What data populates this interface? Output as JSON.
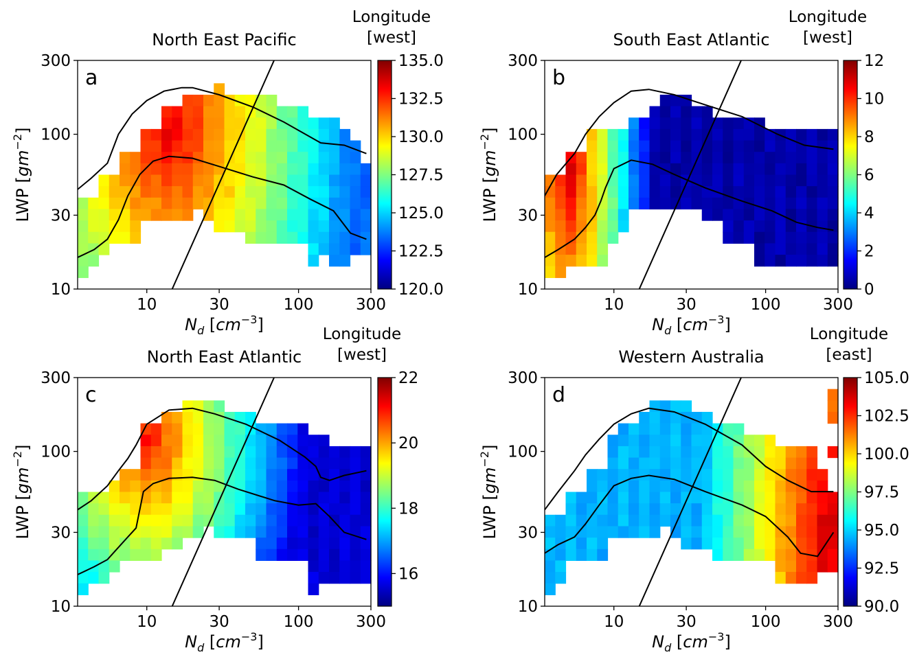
{
  "chart_data": [
    {
      "type": "heatmap",
      "panel_label": "a",
      "title": "North East Pacific",
      "xlabel": "N_d [cm^-3]",
      "ylabel": "LWP [gm^-2]",
      "x_scale": "log",
      "y_scale": "log",
      "xlim": [
        3.5,
        300
      ],
      "ylim": [
        10,
        300
      ],
      "x_ticks": [
        "10",
        "30",
        "100",
        "300"
      ],
      "y_ticks": [
        "10",
        "30",
        "100",
        "300"
      ],
      "colorbar_label": [
        "Longitude",
        "[west]"
      ],
      "colorbar_range": [
        120.0,
        135.0
      ],
      "colorbar_ticks": [
        "120.0",
        "122.5",
        "125.0",
        "127.5",
        "130.0",
        "132.5",
        "135.0"
      ],
      "grid": [
        "............................",
        "............................",
        ".............X..............",
        "..........XXXXXXXXX.........",
        "........XXXXXXXXXXXXXX......",
        "........XXXXXXXXXXXXXXXXX...",
        "......XXXXXXXXXXXXXXXXXXXX..",
        "......XXXXXXXXXXXXXXXXXXXXX.",
        "....XXXXXXXXXXXXXXXXXXXXXXX.",
        "....XXXXXXXXXXXXXXXXXXXXXXXX",
        "..XXXXXXXXXXXXXXXXXXXXXXXXXX",
        "..XXXXXXXXXXXXXXXXXXXXXXXXXX",
        "XXXXXXXXXXXXXXXXXXXXXXXXXXXX",
        "XXXXXXXXXXX.XXXXXXXXXXXXXXXX",
        "XXXXXX.......XXXXXXXXXXXXXXX",
        "XXXXXX..........XXXXXXXXXXXX",
        "XXX...................XXXXXX",
        "XX....................X.XX..",
        "X...........................",
        "............................"
      ],
      "value_field": {
        "peak_x": 14,
        "peak_y": 110,
        "peak_val": 133.5,
        "slope_x": 2.6,
        "slope_y": 1.4,
        "floor": 123.5
      },
      "lines": [
        {
          "name": "upper",
          "x": [
            3.5,
            4.3,
            5.5,
            6.5,
            8,
            10,
            13,
            17,
            20,
            30,
            50,
            80,
            140,
            200,
            280
          ],
          "y": [
            44,
            52,
            65,
            100,
            135,
            165,
            190,
            200,
            200,
            180,
            150,
            120,
            88,
            85,
            75
          ]
        },
        {
          "name": "lower",
          "x": [
            3.5,
            4.5,
            5.5,
            6.5,
            7.5,
            9,
            11,
            14,
            20,
            30,
            50,
            80,
            120,
            170,
            220,
            280
          ],
          "y": [
            16,
            18,
            21,
            28,
            40,
            55,
            67,
            72,
            70,
            62,
            53,
            47,
            38,
            32,
            23,
            21
          ]
        },
        {
          "name": "diagonal",
          "x": [
            14.7,
            69
          ],
          "y": [
            10,
            300
          ]
        }
      ]
    },
    {
      "type": "heatmap",
      "panel_label": "b",
      "title": "South East Atlantic",
      "xlabel": "N_d [cm^-3]",
      "ylabel": "LWP [gm^-2]",
      "x_scale": "log",
      "y_scale": "log",
      "xlim": [
        3.5,
        300
      ],
      "ylim": [
        10,
        300
      ],
      "x_ticks": [
        "10",
        "30",
        "100",
        "300"
      ],
      "y_ticks": [
        "10",
        "30",
        "100",
        "300"
      ],
      "colorbar_label": [
        "Longitude",
        "[west]"
      ],
      "colorbar_range": [
        0,
        12
      ],
      "colorbar_ticks": [
        "0",
        "2",
        "4",
        "6",
        "8",
        "10",
        "12"
      ],
      "grid": [
        "............................",
        "............................",
        "............................",
        "...........XXX..............",
        "..........XXXXXX............",
        "........XXXXXXXXXXXXX.......",
        "....XXXXXXXXXXXXXXXXXXXXXXXX",
        "....XXXXXXXXXXXXXXXXXXXXXXXX",
        "..XXXXXXXXXXXXXXXXXXXXXXXXXX",
        "..XXXXXXXXXXXXXXXXXXXXXXXXXX",
        "XXXXXXXXXXXXXXXXXXXXXXXXXXXX",
        "XXXXXXXXXXXXXXXXXXXXXXXXXXXX",
        "XXXXXXXXXXXXXXXXXXXXXXXXXXXX",
        "XXXXXXXX.......XXXXXXXXXXXXX",
        "XXXXXXXX.........XXXXXXXXXXX",
        "XXXXXXX..........XXXXXXXXXXX",
        "XXXXXX..............XXXXXXXX",
        "XXXXXX..............XXXXXXXX",
        "XX..........................",
        "............................"
      ],
      "value_field": {
        "peak_x": 5,
        "peak_y": 70,
        "peak_val": 11.2,
        "slope_x": 5.6,
        "slope_y": 1.0,
        "floor": 0.5
      },
      "lines": [
        {
          "name": "upper",
          "x": [
            3.5,
            4.2,
            5.5,
            6.5,
            8,
            10,
            13,
            17,
            25,
            40,
            70,
            120,
            180,
            280
          ],
          "y": [
            40,
            55,
            75,
            100,
            130,
            160,
            190,
            195,
            180,
            155,
            130,
            100,
            85,
            80
          ]
        },
        {
          "name": "lower",
          "x": [
            3.5,
            4.3,
            5.5,
            6.5,
            7.5,
            8.2,
            8.8,
            10,
            13,
            18,
            25,
            40,
            70,
            110,
            160,
            220,
            280
          ],
          "y": [
            16,
            18,
            21,
            25,
            30,
            37,
            45,
            60,
            68,
            64,
            55,
            45,
            37,
            32,
            27,
            25,
            24
          ]
        },
        {
          "name": "diagonal",
          "x": [
            14.7,
            69
          ],
          "y": [
            10,
            300
          ]
        }
      ]
    },
    {
      "type": "heatmap",
      "panel_label": "c",
      "title": "North East Atlantic",
      "xlabel": "N_d [cm^-3]",
      "ylabel": "LWP [gm^-2]",
      "x_scale": "log",
      "y_scale": "log",
      "xlim": [
        3.5,
        300
      ],
      "ylim": [
        10,
        300
      ],
      "x_ticks": [
        "10",
        "30",
        "100",
        "300"
      ],
      "y_ticks": [
        "10",
        "30",
        "100",
        "300"
      ],
      "colorbar_label": [
        "Longitude",
        "[west]"
      ],
      "colorbar_range": [
        15,
        22
      ],
      "colorbar_ticks": [
        "16",
        "18",
        "20",
        "22"
      ],
      "grid": [
        "............................",
        "............................",
        "..........XXXX..............",
        "........XXXXXXXXX...........",
        "......XXXXXXXXXXXXXXXX......",
        "......XXXXXXXXXXXXXXXXXX....",
        "......XXXXXXXXXXXXXXXXXXXXXX",
        "......XXXXXXXXXXXXXXXXXXXXXX",
        "....XXXXXXXXXXXXXXXXXXXXXXXX",
        "...XXXXXXXXXXXXXXXXXXXXXXXXX",
        "XXXXXXXXXXXXXXXXXXXXXXXXXXXX",
        "XXXXXXXXXXXXXXXXXXXXXXXXXXXX",
        "XXXXXXXXXXXXXXXXXXXXXXXXXXXX",
        "XXXXXXXXXXXX.XXXXXXXXXXXXXXX",
        "XXXXXXXXXX.......XXXXXXXXXXX",
        "XXXXXXXX.........XXXXXXXXXXX",
        "XXXX..................XXXXXX",
        "XXX...................XXXXXX",
        "X.....................X.....",
        "............................"
      ],
      "value_field": {
        "peak_x": 10,
        "peak_y": 120,
        "peak_val": 21.0,
        "slope_x": 3.0,
        "slope_y": 1.8,
        "floor": 15.6
      },
      "lines": [
        {
          "name": "upper",
          "x": [
            3.5,
            4.3,
            5.5,
            6.5,
            7.5,
            8.5,
            10,
            14,
            20,
            28,
            45,
            75,
            110,
            130,
            140,
            160,
            200,
            280
          ],
          "y": [
            42,
            48,
            60,
            75,
            90,
            110,
            150,
            185,
            190,
            175,
            150,
            118,
            92,
            80,
            68,
            65,
            70,
            75
          ]
        },
        {
          "name": "lower",
          "x": [
            3.5,
            4.5,
            5.5,
            6.5,
            7.5,
            8.5,
            9.5,
            11,
            14,
            20,
            28,
            40,
            70,
            100,
            130,
            160,
            200,
            280
          ],
          "y": [
            16,
            18,
            20,
            24,
            28,
            32,
            55,
            62,
            67,
            68,
            65,
            57,
            48,
            45,
            46,
            38,
            30,
            27
          ]
        },
        {
          "name": "diagonal",
          "x": [
            14.7,
            69
          ],
          "y": [
            10,
            300
          ]
        }
      ]
    },
    {
      "type": "heatmap",
      "panel_label": "d",
      "title": "Western Australia",
      "xlabel": "N_d [cm^-3]",
      "ylabel": "LWP [gm^-2]",
      "x_scale": "log",
      "y_scale": "log",
      "xlim": [
        3.5,
        300
      ],
      "ylim": [
        10,
        300
      ],
      "x_ticks": [
        "10",
        "30",
        "100",
        "300"
      ],
      "y_ticks": [
        "10",
        "30",
        "100",
        "300"
      ],
      "colorbar_label": [
        "Longitude",
        "[east]"
      ],
      "colorbar_range": [
        90.0,
        105.0
      ],
      "colorbar_ticks": [
        "90.0",
        "92.5",
        "95.0",
        "97.5",
        "100.0",
        "102.5",
        "105.0"
      ],
      "grid": [
        "............................",
        "...........................X",
        "..........XXXX.............X",
        ".........XXXXXXX...........X",
        ".......XXXXXXXXXXXX.........",
        "......XXXXXXXXXXXXXXXX......",
        "......XXXXXXXXXXXXXXXXXXXX.X",
        "......XXXXXXXXXXXXXXXXXXXX..",
        "....XXXXXXXXXXXXXXXXXXXXXXX.",
        "....XXXXXXXXXXXXXXXXXXXXXXX.",
        "..XXXXXXXXXXXXXXXXXXXXXXXXXX",
        "..XXXXXXXXXXXXXXXXXXXXXXXXXX",
        "XXXXXXXXXXXXXXXXXXXXXXXXXXXX",
        "XXXXXXXXXXX.XXXXXXXXXXXXXXXX",
        "XXXXXX.......XXXXXXXXXXXXXXX",
        "XXXXXX..........XXXXXXXXXXXX",
        "XX....................XXXXXX",
        "XX....................XXXX..",
        "X...........................",
        "............................"
      ],
      "value_field": {
        "peak_x": 260,
        "peak_y": 30,
        "peak_val": 104.0,
        "slope_x": 3.8,
        "slope_y": 0.9,
        "floor": 94.5
      },
      "lines": [
        {
          "name": "upper",
          "x": [
            3.5,
            4.3,
            5.5,
            6.5,
            8,
            10,
            13,
            17,
            25,
            40,
            70,
            100,
            140,
            200,
            280
          ],
          "y": [
            42,
            55,
            75,
            95,
            120,
            150,
            175,
            190,
            180,
            150,
            110,
            80,
            65,
            55,
            55
          ]
        },
        {
          "name": "lower",
          "x": [
            3.5,
            4.3,
            5.5,
            6.5,
            8,
            10,
            13,
            17,
            25,
            40,
            70,
            100,
            140,
            170,
            220,
            280
          ],
          "y": [
            22,
            25,
            28,
            34,
            45,
            60,
            67,
            70,
            66,
            55,
            45,
            38,
            28,
            22,
            21,
            30
          ]
        },
        {
          "name": "diagonal",
          "x": [
            14.7,
            69
          ],
          "y": [
            10,
            300
          ]
        }
      ]
    }
  ]
}
